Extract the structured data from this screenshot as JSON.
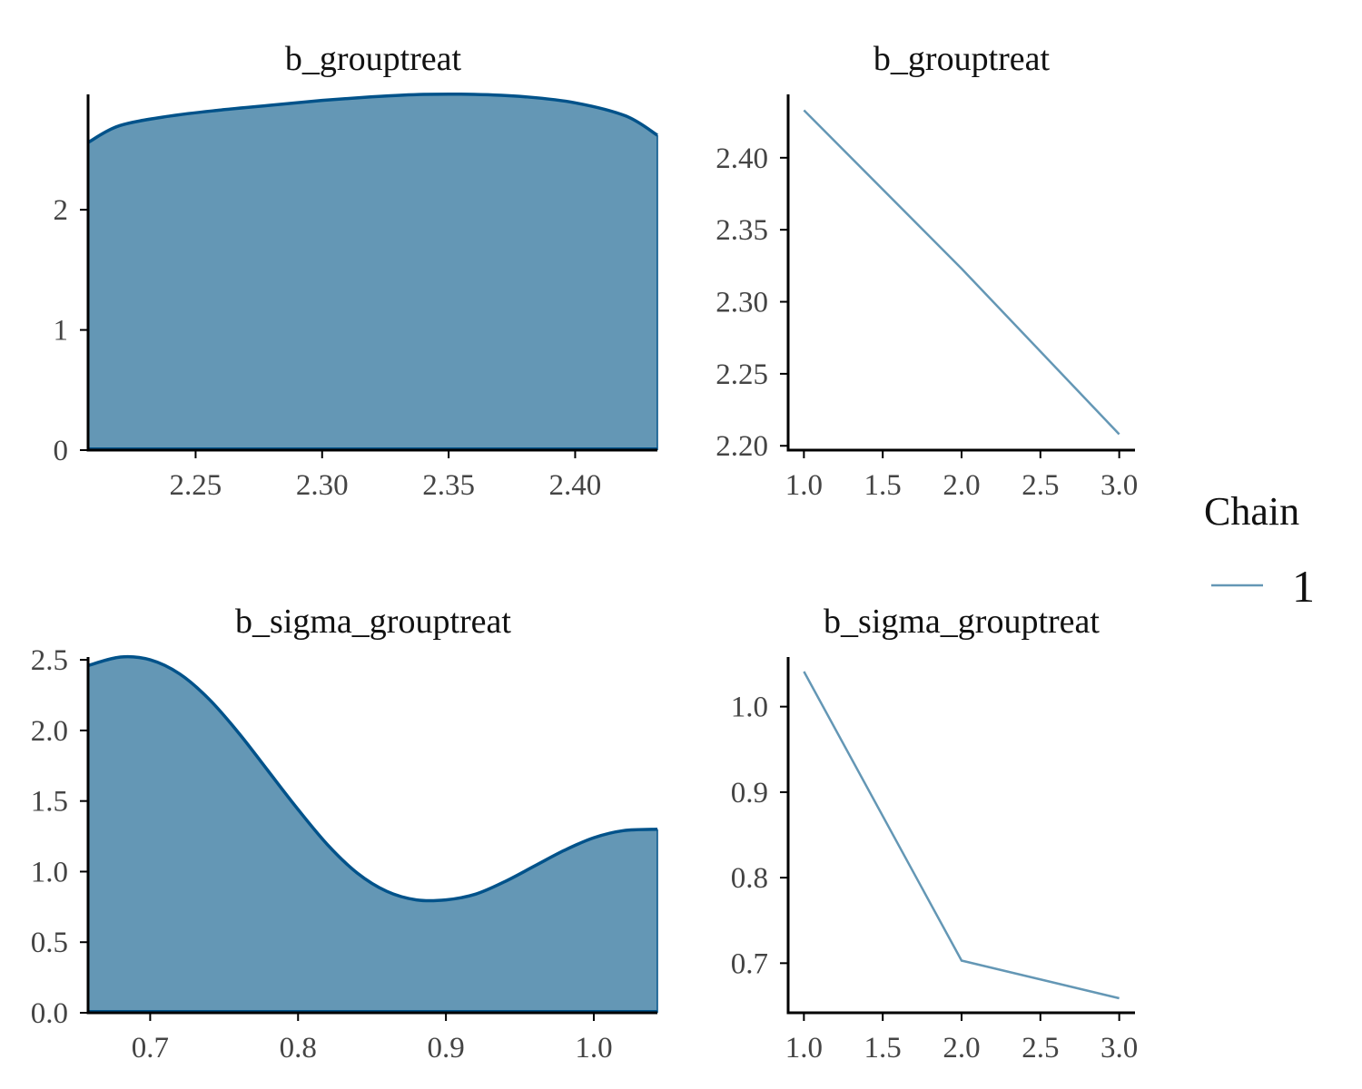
{
  "colors": {
    "density_fill": "#6497b5",
    "density_line": "#00528a",
    "trace_line": "#6497b5",
    "axis": "#000000",
    "tick_text": "#444444"
  },
  "legend": {
    "title": "Chain",
    "items": [
      "1"
    ]
  },
  "chart_data": [
    {
      "type": "area",
      "kind": "density",
      "title": "b_grouptreat",
      "x": [
        2.2075,
        2.22,
        2.24,
        2.26,
        2.28,
        2.3,
        2.32,
        2.34,
        2.36,
        2.38,
        2.4,
        2.42,
        2.4325
      ],
      "y": [
        2.56,
        2.7,
        2.78,
        2.83,
        2.87,
        2.91,
        2.94,
        2.96,
        2.96,
        2.94,
        2.89,
        2.78,
        2.62
      ],
      "xlim": [
        2.2075,
        2.4325
      ],
      "ylim": [
        0,
        2.96
      ],
      "xticks": [
        2.25,
        2.3,
        2.35,
        2.4
      ],
      "xtick_labels": [
        "2.25",
        "2.30",
        "2.35",
        "2.40"
      ],
      "yticks": [
        0,
        1,
        2
      ],
      "ytick_labels": [
        "0",
        "1",
        "2"
      ]
    },
    {
      "type": "line",
      "kind": "trace",
      "title": "b_grouptreat",
      "x": [
        1,
        2,
        3
      ],
      "y": [
        2.433,
        2.323,
        2.208
      ],
      "xlim": [
        0.9,
        3.1
      ],
      "ylim": [
        2.197,
        2.444
      ],
      "xticks": [
        1.0,
        1.5,
        2.0,
        2.5,
        3.0
      ],
      "xtick_labels": [
        "1.0",
        "1.5",
        "2.0",
        "2.5",
        "3.0"
      ],
      "yticks": [
        2.2,
        2.25,
        2.3,
        2.35,
        2.4
      ],
      "ytick_labels": [
        "2.20",
        "2.25",
        "2.30",
        "2.35",
        "2.40"
      ],
      "series": [
        {
          "name": "1",
          "values": [
            2.433,
            2.323,
            2.208
          ]
        }
      ]
    },
    {
      "type": "area",
      "kind": "density",
      "title": "b_sigma_grouptreat",
      "x": [
        0.658,
        0.68,
        0.7,
        0.72,
        0.74,
        0.76,
        0.78,
        0.8,
        0.82,
        0.84,
        0.86,
        0.88,
        0.9,
        0.92,
        0.94,
        0.96,
        0.98,
        1.0,
        1.02,
        1.043
      ],
      "y": [
        2.46,
        2.52,
        2.5,
        2.4,
        2.22,
        1.98,
        1.71,
        1.44,
        1.19,
        0.99,
        0.86,
        0.8,
        0.8,
        0.84,
        0.93,
        1.04,
        1.15,
        1.24,
        1.29,
        1.3
      ],
      "xlim": [
        0.658,
        1.043
      ],
      "ylim": [
        0,
        2.52
      ],
      "xticks": [
        0.7,
        0.8,
        0.9,
        1.0
      ],
      "xtick_labels": [
        "0.7",
        "0.8",
        "0.9",
        "1.0"
      ],
      "yticks": [
        0.0,
        0.5,
        1.0,
        1.5,
        2.0,
        2.5
      ],
      "ytick_labels": [
        "0.0",
        "0.5",
        "1.0",
        "1.5",
        "2.0",
        "2.5"
      ]
    },
    {
      "type": "line",
      "kind": "trace",
      "title": "b_sigma_grouptreat",
      "x": [
        1,
        2,
        3
      ],
      "y": [
        1.041,
        0.703,
        0.659
      ],
      "xlim": [
        0.9,
        3.1
      ],
      "ylim": [
        0.642,
        1.058
      ],
      "xticks": [
        1.0,
        1.5,
        2.0,
        2.5,
        3.0
      ],
      "xtick_labels": [
        "1.0",
        "1.5",
        "2.0",
        "2.5",
        "3.0"
      ],
      "yticks": [
        0.7,
        0.8,
        0.9,
        1.0
      ],
      "ytick_labels": [
        "0.7",
        "0.8",
        "0.9",
        "1.0"
      ],
      "series": [
        {
          "name": "1",
          "values": [
            1.041,
            0.703,
            0.659
          ]
        }
      ]
    }
  ]
}
